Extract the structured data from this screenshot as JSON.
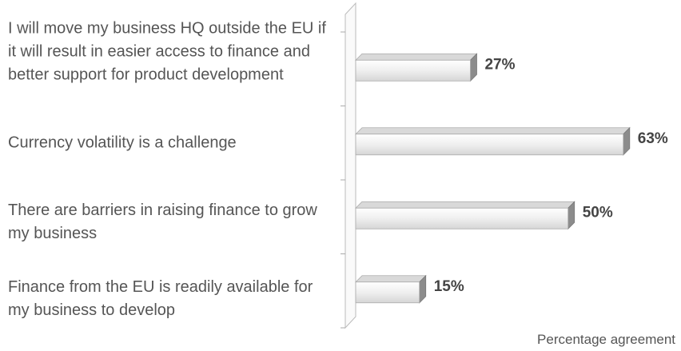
{
  "chart_data": {
    "type": "hbar",
    "categories": [
      "I will move my business HQ outside the EU if it will result in easier access to finance and better support for product development",
      "Currency volatility is a challenge",
      "There are barriers in raising finance to grow my business",
      "Finance from the EU is readily available for my business to develop"
    ],
    "values": [
      27,
      63,
      50,
      15
    ],
    "value_labels": [
      "27%",
      "63%",
      "50%",
      "15%"
    ],
    "xlabel": "Percentage agreement",
    "xlim": [
      0,
      70
    ],
    "color": "#e9e9e9"
  }
}
